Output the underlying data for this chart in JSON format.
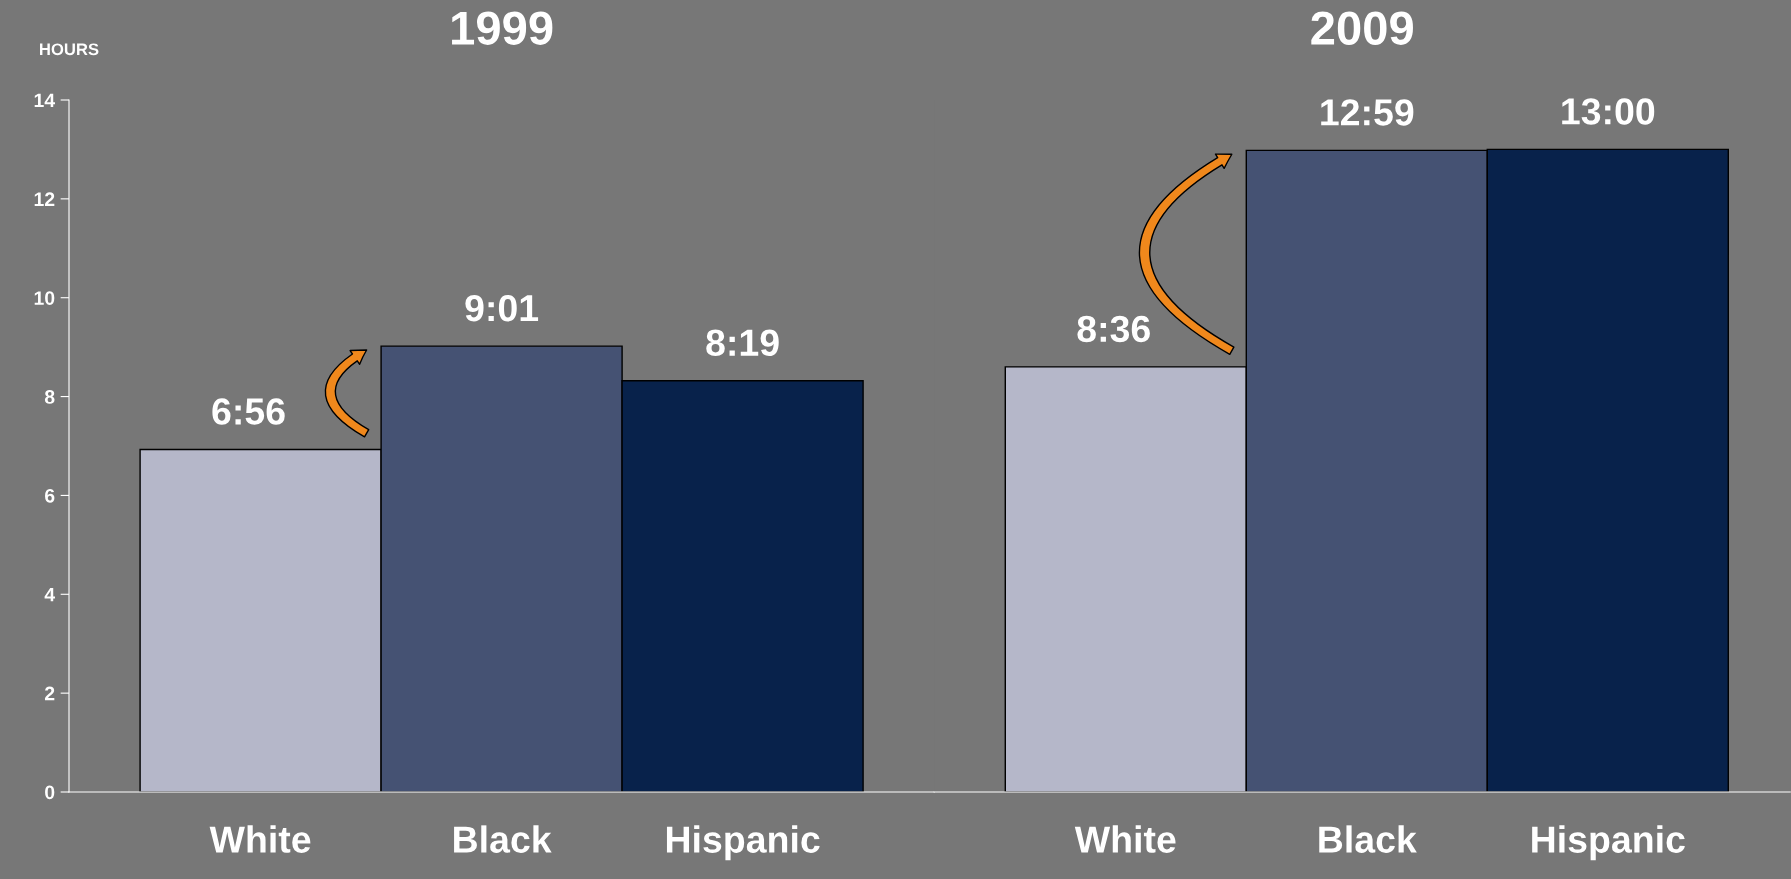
{
  "chart_data": [
    {
      "type": "bar",
      "title": "1999",
      "ylabel": "HOURS",
      "categories": [
        "White",
        "Black",
        "Hispanic"
      ],
      "values": [
        6.93,
        9.02,
        8.32
      ],
      "colors": [
        "#b5b7c9",
        "#455273",
        "#08224b"
      ],
      "value_labels": [
        "6:56",
        "9:01",
        "8:19"
      ],
      "ylim": [
        0,
        14
      ],
      "yticks": [
        0,
        2,
        4,
        6,
        8,
        10,
        12,
        14
      ]
    },
    {
      "type": "bar",
      "title": "2009",
      "categories": [
        "White",
        "Black",
        "Hispanic"
      ],
      "values": [
        8.6,
        12.98,
        13.0
      ],
      "colors": [
        "#b5b7c9",
        "#455273",
        "#08224b"
      ],
      "value_labels": [
        "8:36",
        "12:59",
        "13:00"
      ],
      "ylim": [
        0,
        14
      ],
      "yticks": [
        0,
        2,
        4,
        6,
        8,
        10,
        12,
        14
      ],
      "tick_labels": "x"
    }
  ]
}
